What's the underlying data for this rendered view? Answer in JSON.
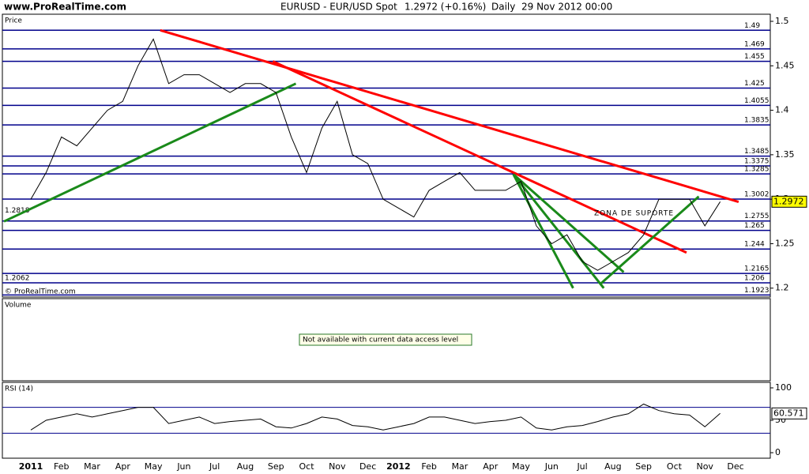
{
  "header": {
    "site": "www.ProRealTime.com",
    "symbol": "EURUSD - EUR/USD Spot",
    "last": "1.2972 (+0.16%)",
    "period": "Daily",
    "datetime": "29 Nov 2012 00:00"
  },
  "chart_data": [
    {
      "type": "line",
      "title": "Price",
      "copyright": "© ProRealTime.com",
      "categories": [
        "2011",
        null,
        "Feb",
        null,
        "Mar",
        null,
        "Apr",
        null,
        "May",
        null,
        "Jun",
        null,
        "Jul",
        null,
        "Aug",
        null,
        "Sep",
        null,
        "Oct",
        null,
        "Nov",
        null,
        "Dec",
        null,
        "2012",
        null,
        "Feb",
        null,
        "Mar",
        null,
        "Apr",
        null,
        "May",
        null,
        "Jun",
        null,
        "Jul",
        null,
        "Aug",
        null,
        "Sep",
        null,
        "Oct",
        null,
        "Nov",
        null,
        "Dec"
      ],
      "values": [
        1.3,
        1.33,
        1.37,
        1.36,
        1.38,
        1.4,
        1.41,
        1.45,
        1.48,
        1.43,
        1.44,
        1.44,
        1.43,
        1.42,
        1.43,
        1.43,
        1.42,
        1.37,
        1.33,
        1.38,
        1.41,
        1.35,
        1.34,
        1.3,
        1.29,
        1.28,
        1.31,
        1.32,
        1.33,
        1.31,
        1.31,
        1.31,
        1.32,
        1.27,
        1.25,
        1.26,
        1.23,
        1.22,
        1.23,
        1.24,
        1.26,
        1.3,
        1.3,
        1.3,
        1.27,
        1.2972,
        null
      ],
      "color": "#000000",
      "ylim": [
        1.19,
        1.508
      ],
      "yticks": [
        1.2,
        1.25,
        1.3,
        1.35,
        1.4,
        1.45,
        1.5
      ],
      "levels": [
        1.49,
        1.469,
        1.455,
        1.425,
        1.4055,
        1.3835,
        1.3485,
        1.3375,
        1.3285,
        1.3002,
        1.2755,
        1.265,
        1.244,
        1.2165,
        1.206,
        1.1923
      ],
      "level_color": "#00008b",
      "left_labels": [
        1.2818,
        1.2062
      ],
      "annotation": "ZONA DE SUPORTE",
      "trendlines": [
        {
          "color": "#ff0000",
          "points": [
            [
              8.45,
              1.49
            ],
            [
              46.2,
              1.297
            ]
          ]
        },
        {
          "color": "#ff0000",
          "points": [
            [
              15.8,
              1.455
            ],
            [
              42.8,
              1.24
            ]
          ]
        },
        {
          "color": "#1a8a1a",
          "points": [
            [
              -1.75,
              1.275
            ],
            [
              17.3,
              1.43
            ]
          ]
        },
        {
          "color": "#1a8a1a",
          "points": [
            [
              31.5,
              1.328
            ],
            [
              35.4,
              1.2
            ]
          ]
        },
        {
          "color": "#1a8a1a",
          "points": [
            [
              31.5,
              1.328
            ],
            [
              37.4,
              1.2
            ]
          ]
        },
        {
          "color": "#1a8a1a",
          "points": [
            [
              31.5,
              1.328
            ],
            [
              38.7,
              1.218
            ]
          ]
        },
        {
          "color": "#1a8a1a",
          "points": [
            [
              37.2,
              1.205
            ],
            [
              43.6,
              1.303
            ]
          ]
        }
      ]
    },
    {
      "type": "message",
      "title": "Volume",
      "message": "Not available with current data access level"
    },
    {
      "type": "line",
      "title": "RSI (14)",
      "values": [
        35,
        50,
        55,
        60,
        55,
        60,
        65,
        70,
        70,
        45,
        50,
        55,
        45,
        48,
        50,
        52,
        40,
        38,
        45,
        55,
        52,
        42,
        40,
        35,
        40,
        45,
        55,
        55,
        50,
        45,
        48,
        50,
        55,
        38,
        35,
        40,
        42,
        48,
        55,
        60,
        75,
        65,
        60,
        58,
        40,
        60.571,
        null
      ],
      "color": "#000000",
      "ylim": [
        -8.5,
        108.5
      ],
      "yticks": [
        0,
        50,
        100
      ],
      "levels": [
        70,
        30
      ],
      "level_color": "#00008b"
    }
  ]
}
